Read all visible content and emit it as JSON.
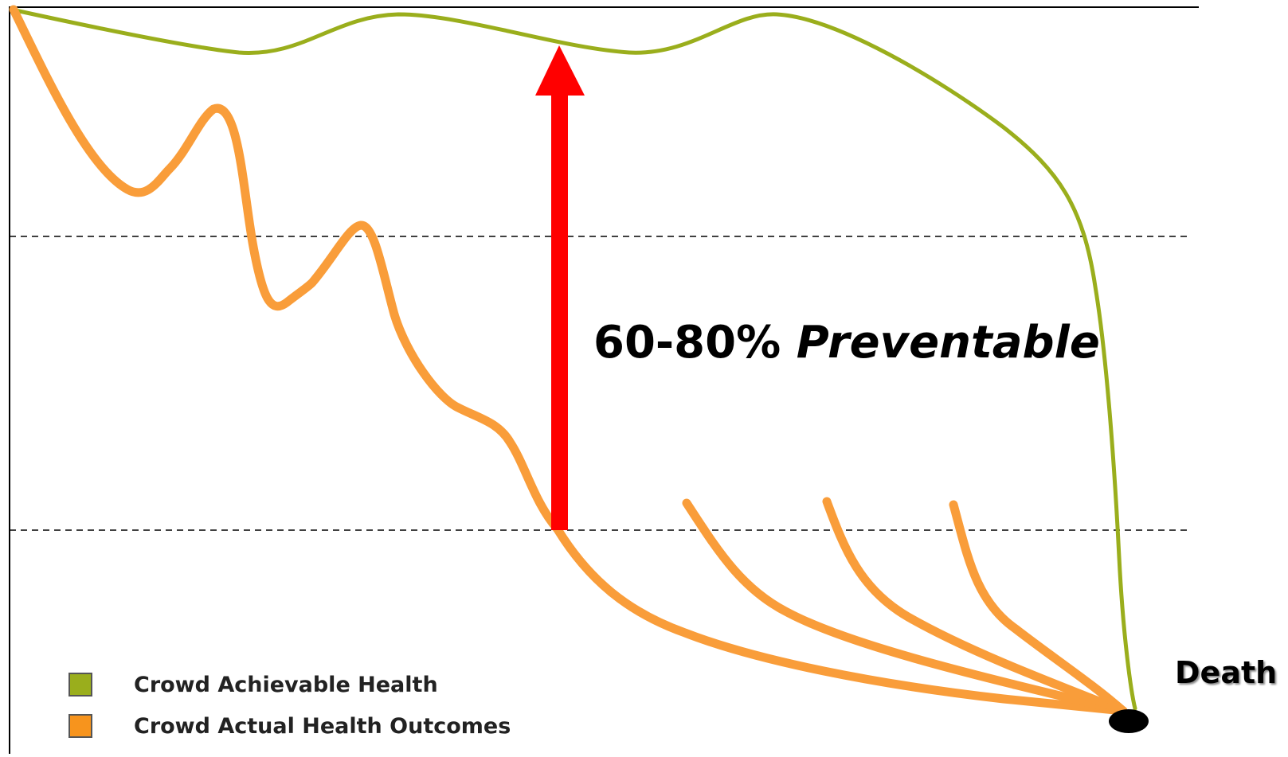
{
  "callout": {
    "number": "60-80%",
    "word": "Preventable"
  },
  "end_label": "Death",
  "legend": [
    {
      "label": "Crowd Achievable Health",
      "color": "#9aae1c"
    },
    {
      "label": "Crowd Actual Health Outcomes",
      "color": "#f7941d"
    }
  ],
  "colors": {
    "achievable": "#9aae1c",
    "actual": "#f99d3a",
    "arrow": "#ff0000",
    "death_marker": "#000000",
    "gridline": "#000000"
  }
}
